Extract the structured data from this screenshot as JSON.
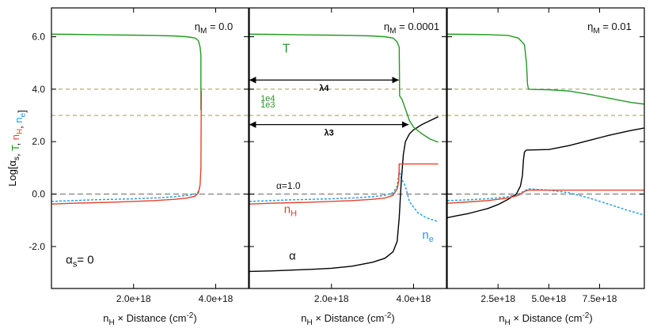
{
  "chart_data": {
    "type": "line",
    "ylabel": {
      "prefix": "Log[",
      "parts": [
        {
          "text": "α",
          "sub": "s",
          "color": "#000000"
        },
        {
          "text": ", ",
          "sub": "",
          "color": "#000000"
        },
        {
          "text": "T",
          "sub": "",
          "color": "#229922"
        },
        {
          "text": ", ",
          "sub": "",
          "color": "#000000"
        },
        {
          "text": "n",
          "sub": "H",
          "color": "#e8412c"
        },
        {
          "text": ", ",
          "sub": "",
          "color": "#000000"
        },
        {
          "text": "n",
          "sub": "e",
          "color": "#1e9be0"
        }
      ],
      "suffix": "]"
    },
    "ylim": [
      -3.6,
      7.1
    ],
    "yticks": [
      -2.0,
      0.0,
      2.0,
      4.0,
      6.0
    ],
    "ytick_labels": [
      "-2.0",
      "0.0",
      "2.0",
      "4.0",
      "6.0"
    ],
    "colors": {
      "T": "#229922",
      "nH": "#e8412c",
      "ne": "#1e9be0",
      "alpha": "#000000",
      "ref": "#a9a36a",
      "zero": "#888888"
    },
    "panels": [
      {
        "eta_prefix": "η",
        "eta_sub": "M",
        "eta_value": "= 0.0",
        "xlim": [
          0,
          4.8e+18
        ],
        "xticks": [
          2e+18,
          4e+18
        ],
        "xtick_labels": [
          "2.0e+18",
          "4.0e+18"
        ],
        "xlabel": {
          "prefix": "n",
          "sub": "H",
          "rest": " × Distance (cm",
          "sup": "-2",
          "end": ")"
        },
        "ref_lines": [
          4.0,
          3.0
        ],
        "series": [
          {
            "name": "T",
            "x": [
              0,
              5e+17,
              1e+18,
              1.5e+18,
              2e+18,
              2.5e+18,
              3e+18,
              3.3e+18,
              3.5e+18,
              3.58e+18,
              3.62e+18,
              3.64e+18,
              3.64e+18
            ],
            "y": [
              6.1,
              6.09,
              6.08,
              6.07,
              6.06,
              6.05,
              6.03,
              6.0,
              5.95,
              5.85,
              5.6,
              5.3,
              3.2
            ]
          },
          {
            "name": "nH",
            "x": [
              0,
              5e+17,
              1e+18,
              1.5e+18,
              2e+18,
              2.5e+18,
              3e+18,
              3.3e+18,
              3.5e+18,
              3.58e+18,
              3.62e+18,
              3.64e+18,
              3.645e+18,
              3.65e+18
            ],
            "y": [
              -0.38,
              -0.35,
              -0.33,
              -0.31,
              -0.28,
              -0.25,
              -0.2,
              -0.15,
              -0.08,
              0.05,
              0.35,
              1.0,
              2.5,
              3.95
            ]
          },
          {
            "name": "ne",
            "dashed": true,
            "x": [
              0,
              5e+17,
              1e+18,
              1.5e+18,
              2e+18,
              2.5e+18,
              3e+18,
              3.3e+18,
              3.5e+18,
              3.58e+18,
              3.62e+18
            ],
            "y": [
              -0.28,
              -0.25,
              -0.22,
              -0.2,
              -0.18,
              -0.15,
              -0.1,
              -0.05,
              0.0,
              0.1,
              0.3
            ]
          }
        ],
        "annotations": [
          {
            "kind": "alpha_s",
            "prefix": "α",
            "sub": "s",
            "rest": "= 0",
            "x": 3.5e+17,
            "y": -2.65
          }
        ]
      },
      {
        "eta_prefix": "η",
        "eta_sub": "M",
        "eta_value": "= 0.0001",
        "xlim": [
          0,
          4.8e+18
        ],
        "xticks": [
          2e+18,
          4e+18
        ],
        "xtick_labels": [
          "2.0e+18",
          "4.0e+18"
        ],
        "xlabel": {
          "prefix": "n",
          "sub": "H",
          "rest": " × Distance (cm",
          "sup": "-2",
          "end": ")"
        },
        "ref_lines": [
          4.0,
          3.0
        ],
        "series": [
          {
            "name": "T",
            "x": [
              0,
              5e+17,
              1e+18,
              1.5e+18,
              2e+18,
              2.5e+18,
              3e+18,
              3.3e+18,
              3.5e+18,
              3.6e+18,
              3.65e+18,
              3.66e+18,
              3.72e+18,
              3.8e+18,
              3.9e+18,
              4e+18,
              4.2e+18,
              4.4e+18,
              4.6e+18
            ],
            "y": [
              6.1,
              6.09,
              6.08,
              6.07,
              6.06,
              6.05,
              6.03,
              6.0,
              5.95,
              5.8,
              5.6,
              3.75,
              3.6,
              3.25,
              2.8,
              2.55,
              2.3,
              2.1,
              1.98
            ]
          },
          {
            "name": "nH",
            "x": [
              0,
              5e+17,
              1e+18,
              1.5e+18,
              2e+18,
              2.5e+18,
              3e+18,
              3.3e+18,
              3.5e+18,
              3.6e+18,
              3.64e+18,
              3.65e+18,
              4e+18,
              4.6e+18
            ],
            "y": [
              -0.38,
              -0.35,
              -0.33,
              -0.31,
              -0.28,
              -0.25,
              -0.2,
              -0.15,
              -0.05,
              0.2,
              0.5,
              1.15,
              1.15,
              1.15
            ]
          },
          {
            "name": "ne",
            "dashed": true,
            "x": [
              0,
              5e+17,
              1e+18,
              1.5e+18,
              2e+18,
              2.5e+18,
              3e+18,
              3.3e+18,
              3.5e+18,
              3.6e+18,
              3.65e+18,
              3.7e+18,
              3.8e+18,
              3.9e+18,
              4.1e+18,
              4.3e+18,
              4.6e+18
            ],
            "y": [
              -0.28,
              -0.25,
              -0.22,
              -0.2,
              -0.18,
              -0.15,
              -0.1,
              -0.05,
              0.05,
              0.3,
              0.9,
              0.6,
              0.3,
              -0.3,
              -0.7,
              -0.9,
              -1.05
            ]
          },
          {
            "name": "alpha",
            "x": [
              0,
              5e+17,
              1e+18,
              1.5e+18,
              2e+18,
              2.5e+18,
              3e+18,
              3.3e+18,
              3.5e+18,
              3.6e+18,
              3.65e+18,
              3.7e+18,
              3.75e+18,
              3.8e+18,
              3.9e+18,
              4e+18,
              4.2e+18,
              4.4e+18,
              4.6e+18
            ],
            "y": [
              -2.95,
              -2.93,
              -2.9,
              -2.87,
              -2.83,
              -2.75,
              -2.6,
              -2.45,
              -2.2,
              -1.8,
              -0.9,
              0.5,
              1.5,
              2.0,
              2.3,
              2.45,
              2.65,
              2.8,
              2.95
            ]
          }
        ],
        "annotations": [
          {
            "kind": "label",
            "text": "T",
            "color": "#229922",
            "x": 9e+17,
            "y": 5.4,
            "size": 16
          },
          {
            "kind": "label",
            "text": "1e4",
            "color": "#229922",
            "x": 4.5e+17,
            "y": 3.55,
            "size": 11
          },
          {
            "kind": "label",
            "text": "1e3",
            "color": "#229922",
            "x": 4.5e+17,
            "y": 3.3,
            "size": 11
          },
          {
            "kind": "arrow",
            "text": "λ4",
            "x0": 0.0,
            "x1": 3.64e+18,
            "y": 4.35
          },
          {
            "kind": "arrow",
            "text": "λ3",
            "x0": 0.0,
            "x1": 3.88e+18,
            "y": 2.65
          },
          {
            "kind": "label",
            "text": "α=1.0",
            "color": "#111111",
            "x": 9.5e+17,
            "y": 0.2,
            "size": 12
          },
          {
            "kind": "sublabel",
            "prefix": "n",
            "sub": "H",
            "color": "#e8412c",
            "x": 1e+18,
            "y": -0.72
          },
          {
            "kind": "sublabel",
            "prefix": "n",
            "sub": "e",
            "color": "#1e9be0",
            "x": 4.35e+18,
            "y": -1.7
          },
          {
            "kind": "label",
            "text": "α",
            "color": "#111111",
            "x": 1.05e+18,
            "y": -2.5,
            "size": 15
          }
        ]
      },
      {
        "eta_prefix": "η",
        "eta_sub": "M",
        "eta_value": "= 0.01",
        "xlim": [
          0,
          9.7e+18
        ],
        "xticks": [
          2.5e+18,
          5e+18,
          7.5e+18
        ],
        "xtick_labels": [
          "2.5e+18",
          "5.0e+18",
          "7.5e+18"
        ],
        "xlabel": {
          "prefix": "n",
          "sub": "H",
          "rest": " × Distance (cm",
          "sup": "-2",
          "end": ")"
        },
        "ref_lines": [
          4.0,
          3.0
        ],
        "series": [
          {
            "name": "T",
            "x": [
              0,
              1e+18,
              2e+18,
              3e+18,
              3.5e+18,
              3.8e+18,
              3.9e+18,
              3.95e+18,
              4e+18,
              4.2e+18,
              5e+18,
              6e+18,
              7e+18,
              8e+18,
              9e+18,
              9.7e+18
            ],
            "y": [
              6.1,
              6.09,
              6.08,
              6.05,
              5.95,
              5.7,
              5.0,
              4.2,
              4.0,
              3.99,
              3.98,
              3.93,
              3.8,
              3.65,
              3.5,
              3.43
            ]
          },
          {
            "name": "nH",
            "x": [
              0,
              1e+18,
              2e+18,
              3e+18,
              3.5e+18,
              3.8e+18,
              4e+18,
              5e+18,
              7e+18,
              9.7e+18
            ],
            "y": [
              -0.35,
              -0.3,
              -0.25,
              -0.15,
              -0.05,
              0.1,
              0.15,
              0.15,
              0.15,
              0.15
            ]
          },
          {
            "name": "ne",
            "dashed": true,
            "x": [
              0,
              1e+18,
              2e+18,
              3e+18,
              3.5e+18,
              3.8e+18,
              4e+18,
              5e+18,
              6e+18,
              7e+18,
              8e+18,
              9e+18,
              9.7e+18
            ],
            "y": [
              -0.25,
              -0.22,
              -0.18,
              -0.1,
              0.0,
              0.12,
              0.2,
              0.15,
              0.05,
              -0.15,
              -0.4,
              -0.65,
              -0.8
            ]
          },
          {
            "name": "alpha",
            "x": [
              0,
              5e+17,
              1e+18,
              1.5e+18,
              2e+18,
              2.5e+18,
              3e+18,
              3.4e+18,
              3.6e+18,
              3.7e+18,
              3.75e+18,
              3.8e+18,
              3.9e+18,
              4e+18,
              5e+18,
              6e+18,
              7e+18,
              8e+18,
              9e+18,
              9.7e+18
            ],
            "y": [
              -0.9,
              -0.82,
              -0.75,
              -0.65,
              -0.55,
              -0.4,
              -0.2,
              0.0,
              0.3,
              0.7,
              1.3,
              1.6,
              1.68,
              1.68,
              1.7,
              1.85,
              2.05,
              2.25,
              2.42,
              2.52
            ]
          }
        ],
        "annotations": []
      }
    ]
  }
}
